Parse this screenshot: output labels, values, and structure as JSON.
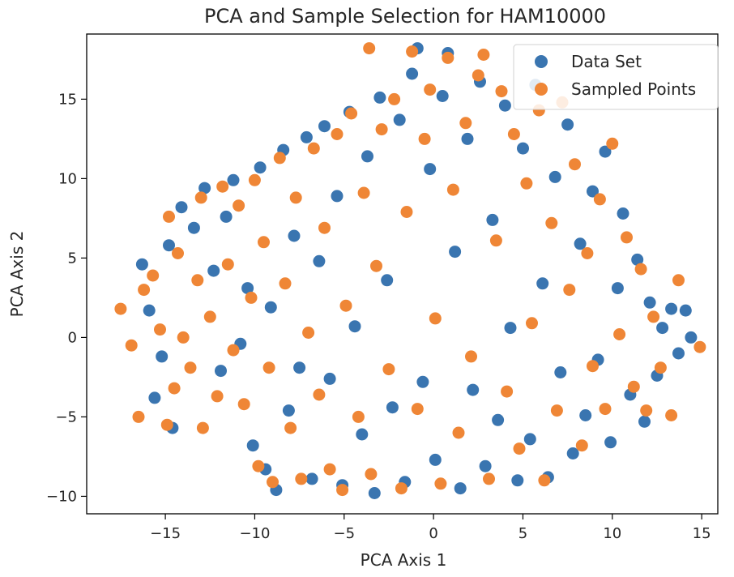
{
  "chart_data": {
    "type": "scatter",
    "title": "PCA and Sample Selection for HAM10000",
    "xlabel": "PCA Axis 1",
    "ylabel": "PCA Axis 2",
    "xlim": [
      -19.4,
      15.9
    ],
    "ylim": [
      -11.1,
      19.1
    ],
    "xticks": [
      -15,
      -10,
      -5,
      0,
      5,
      10,
      15
    ],
    "yticks": [
      -10,
      -5,
      0,
      5,
      10,
      15
    ],
    "xtick_labels": [
      "−15",
      "−10",
      "−5",
      "0",
      "5",
      "10",
      "15"
    ],
    "ytick_labels": [
      "−10",
      "−5",
      "0",
      "5",
      "10",
      "15"
    ],
    "grid": false,
    "legend_position": "top-right",
    "series": [
      {
        "name": "Data Set",
        "color": "#3a75b0",
        "points": [
          [
            -16.3,
            4.6
          ],
          [
            -15.9,
            1.7
          ],
          [
            -15.6,
            -3.8
          ],
          [
            -15.2,
            -1.2
          ],
          [
            -14.8,
            5.8
          ],
          [
            -14.6,
            -5.7
          ],
          [
            -14.1,
            8.2
          ],
          [
            -13.4,
            6.9
          ],
          [
            -12.8,
            9.4
          ],
          [
            -12.3,
            4.2
          ],
          [
            -11.9,
            -2.1
          ],
          [
            -11.6,
            7.6
          ],
          [
            -11.2,
            9.9
          ],
          [
            -10.8,
            -0.4
          ],
          [
            -10.4,
            3.1
          ],
          [
            -10.1,
            -6.8
          ],
          [
            -9.7,
            10.7
          ],
          [
            -9.4,
            -8.3
          ],
          [
            -9.1,
            1.9
          ],
          [
            -8.8,
            -9.6
          ],
          [
            -8.4,
            11.8
          ],
          [
            -8.1,
            -4.6
          ],
          [
            -7.8,
            6.4
          ],
          [
            -7.5,
            -1.9
          ],
          [
            -7.1,
            12.6
          ],
          [
            -6.8,
            -8.9
          ],
          [
            -6.4,
            4.8
          ],
          [
            -6.1,
            13.3
          ],
          [
            -5.8,
            -2.6
          ],
          [
            -5.4,
            8.9
          ],
          [
            -5.1,
            -9.3
          ],
          [
            -4.7,
            14.2
          ],
          [
            -4.4,
            0.7
          ],
          [
            -4.0,
            -6.1
          ],
          [
            -3.7,
            11.4
          ],
          [
            -3.3,
            -9.8
          ],
          [
            -3.0,
            15.1
          ],
          [
            -2.6,
            3.6
          ],
          [
            -2.3,
            -4.4
          ],
          [
            -1.9,
            13.7
          ],
          [
            -1.6,
            -9.1
          ],
          [
            -1.2,
            16.6
          ],
          [
            -0.9,
            18.2
          ],
          [
            -0.6,
            -2.8
          ],
          [
            -0.2,
            10.6
          ],
          [
            0.1,
            -7.7
          ],
          [
            0.5,
            15.2
          ],
          [
            0.8,
            17.9
          ],
          [
            1.2,
            5.4
          ],
          [
            1.5,
            -9.5
          ],
          [
            1.9,
            12.5
          ],
          [
            2.2,
            -3.3
          ],
          [
            2.6,
            16.1
          ],
          [
            2.9,
            -8.1
          ],
          [
            3.3,
            7.4
          ],
          [
            3.6,
            -5.2
          ],
          [
            4.0,
            14.6
          ],
          [
            4.3,
            0.6
          ],
          [
            4.7,
            -9.0
          ],
          [
            5.0,
            11.9
          ],
          [
            5.4,
            -6.4
          ],
          [
            5.7,
            15.9
          ],
          [
            6.1,
            3.4
          ],
          [
            6.4,
            -8.8
          ],
          [
            6.8,
            10.1
          ],
          [
            7.1,
            -2.2
          ],
          [
            7.5,
            13.4
          ],
          [
            7.8,
            -7.3
          ],
          [
            8.2,
            5.9
          ],
          [
            8.5,
            -4.9
          ],
          [
            8.9,
            9.2
          ],
          [
            9.2,
            -1.4
          ],
          [
            9.6,
            11.7
          ],
          [
            9.9,
            -6.6
          ],
          [
            10.3,
            3.1
          ],
          [
            10.6,
            7.8
          ],
          [
            11.0,
            -3.6
          ],
          [
            11.4,
            4.9
          ],
          [
            11.8,
            -5.3
          ],
          [
            12.1,
            2.2
          ],
          [
            12.5,
            -2.4
          ],
          [
            12.8,
            0.6
          ],
          [
            13.3,
            1.8
          ],
          [
            13.7,
            -1.0
          ],
          [
            14.1,
            1.7
          ],
          [
            14.4,
            0.0
          ]
        ]
      },
      {
        "name": "Sampled Points",
        "color": "#ef8636",
        "points": [
          [
            -17.5,
            1.8
          ],
          [
            -16.9,
            -0.5
          ],
          [
            -16.5,
            -5.0
          ],
          [
            -16.2,
            3.0
          ],
          [
            -15.7,
            3.9
          ],
          [
            -15.3,
            0.5
          ],
          [
            -14.9,
            -5.5
          ],
          [
            -14.8,
            7.6
          ],
          [
            -14.5,
            -3.2
          ],
          [
            -14.3,
            5.3
          ],
          [
            -14.0,
            0.0
          ],
          [
            -13.6,
            -1.9
          ],
          [
            -13.2,
            3.6
          ],
          [
            -13.0,
            8.8
          ],
          [
            -12.9,
            -5.7
          ],
          [
            -12.5,
            1.3
          ],
          [
            -12.1,
            -3.7
          ],
          [
            -11.8,
            9.5
          ],
          [
            -11.5,
            4.6
          ],
          [
            -11.2,
            -0.8
          ],
          [
            -10.9,
            8.3
          ],
          [
            -10.6,
            -4.2
          ],
          [
            -10.2,
            2.5
          ],
          [
            -10.0,
            9.9
          ],
          [
            -9.8,
            -8.1
          ],
          [
            -9.5,
            6.0
          ],
          [
            -9.2,
            -1.9
          ],
          [
            -9.0,
            -9.1
          ],
          [
            -8.6,
            11.3
          ],
          [
            -8.3,
            3.4
          ],
          [
            -8.0,
            -5.7
          ],
          [
            -7.7,
            8.8
          ],
          [
            -7.4,
            -8.9
          ],
          [
            -7.0,
            0.3
          ],
          [
            -6.7,
            11.9
          ],
          [
            -6.4,
            -3.6
          ],
          [
            -6.1,
            6.9
          ],
          [
            -5.8,
            -8.3
          ],
          [
            -5.4,
            12.8
          ],
          [
            -5.1,
            -9.6
          ],
          [
            -4.9,
            2.0
          ],
          [
            -4.6,
            14.1
          ],
          [
            -4.2,
            -5.0
          ],
          [
            -3.9,
            9.1
          ],
          [
            -3.6,
            18.2
          ],
          [
            -3.5,
            -8.6
          ],
          [
            -3.2,
            4.5
          ],
          [
            -2.9,
            13.1
          ],
          [
            -2.5,
            -2.0
          ],
          [
            -2.2,
            15.0
          ],
          [
            -1.8,
            -9.5
          ],
          [
            -1.5,
            7.9
          ],
          [
            -1.2,
            18.0
          ],
          [
            -0.9,
            -4.5
          ],
          [
            -0.5,
            12.5
          ],
          [
            -0.2,
            15.6
          ],
          [
            0.1,
            1.2
          ],
          [
            0.4,
            -9.2
          ],
          [
            0.8,
            17.6
          ],
          [
            1.1,
            9.3
          ],
          [
            1.4,
            -6.0
          ],
          [
            1.8,
            13.5
          ],
          [
            2.1,
            -1.2
          ],
          [
            2.5,
            16.5
          ],
          [
            2.8,
            17.8
          ],
          [
            3.1,
            -8.9
          ],
          [
            3.5,
            6.1
          ],
          [
            3.8,
            15.5
          ],
          [
            4.1,
            -3.4
          ],
          [
            4.5,
            12.8
          ],
          [
            4.8,
            -7.0
          ],
          [
            5.2,
            9.7
          ],
          [
            5.5,
            0.9
          ],
          [
            5.9,
            14.3
          ],
          [
            6.2,
            -9.0
          ],
          [
            6.6,
            7.2
          ],
          [
            6.9,
            -4.6
          ],
          [
            7.2,
            14.8
          ],
          [
            7.6,
            3.0
          ],
          [
            7.9,
            10.9
          ],
          [
            8.3,
            -6.8
          ],
          [
            8.6,
            5.3
          ],
          [
            8.9,
            -1.8
          ],
          [
            9.3,
            8.7
          ],
          [
            9.6,
            -4.5
          ],
          [
            10.0,
            12.2
          ],
          [
            10.4,
            0.2
          ],
          [
            10.8,
            6.3
          ],
          [
            11.2,
            -3.1
          ],
          [
            11.6,
            4.3
          ],
          [
            11.9,
            -4.6
          ],
          [
            12.3,
            1.3
          ],
          [
            12.7,
            -1.9
          ],
          [
            13.3,
            -4.9
          ],
          [
            13.7,
            3.6
          ],
          [
            14.9,
            -0.6
          ]
        ]
      }
    ]
  }
}
